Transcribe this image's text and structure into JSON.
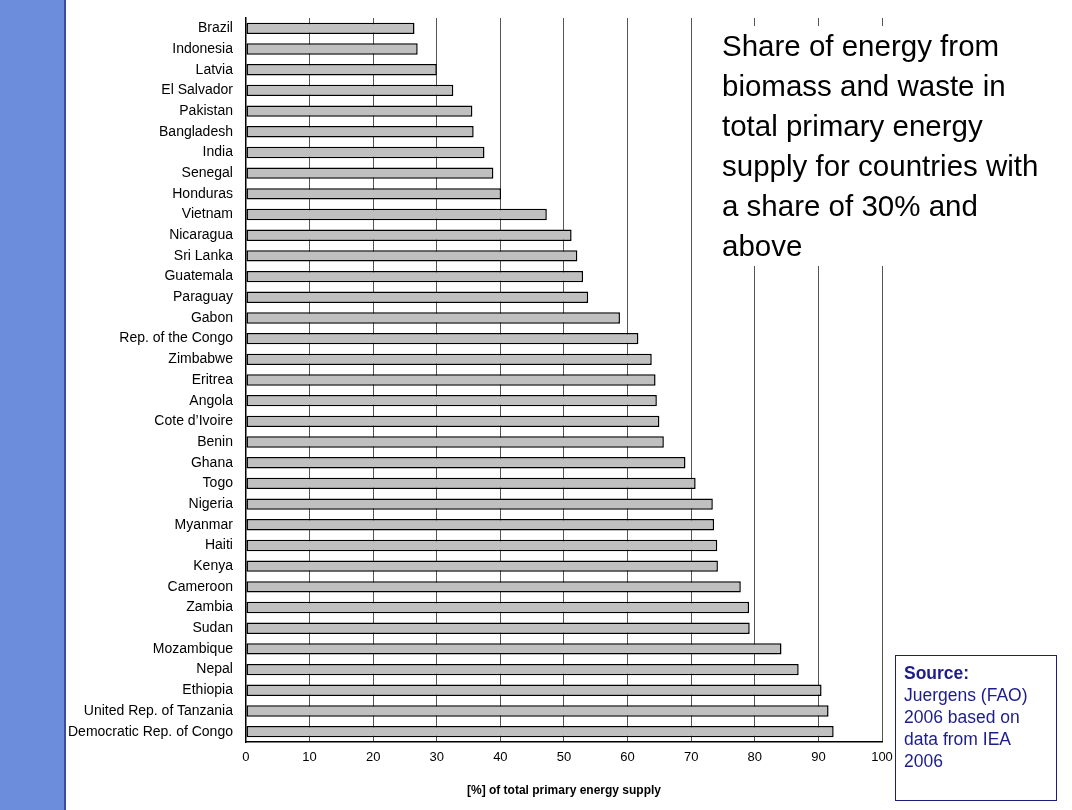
{
  "chart_data": {
    "type": "bar",
    "orientation": "horizontal",
    "title": "Share of energy from biomass and waste in total primary energy supply for countries with a share of 30% and above",
    "xlabel": "[%] of total primary energy supply",
    "categories": [
      "Brazil",
      "Indonesia",
      "Latvia",
      "El Salvador",
      "Pakistan",
      "Bangladesh",
      "India",
      "Senegal",
      "Honduras",
      "Vietnam",
      "Nicaragua",
      "Sri Lanka",
      "Guatemala",
      "Paraguay",
      "Gabon",
      "Rep. of the Congo",
      "Zimbabwe",
      "Eritrea",
      "Angola",
      "Cote d’Ivoire",
      "Benin",
      "Ghana",
      "Togo",
      "Nigeria",
      "Myanmar",
      "Haiti",
      "Kenya",
      "Cameroon",
      "Zambia",
      "Sudan",
      "Mozambique",
      "Nepal",
      "Ethiopia",
      "United Rep. of Tanzania",
      "Democratic Rep. of Congo"
    ],
    "values": [
      26.5,
      27.0,
      30.0,
      32.6,
      35.6,
      35.8,
      37.5,
      38.9,
      40.1,
      47.3,
      51.2,
      52.1,
      53.0,
      53.8,
      58.8,
      61.7,
      63.8,
      64.4,
      64.6,
      65.0,
      65.7,
      69.1,
      70.7,
      73.4,
      73.6,
      74.1,
      74.2,
      77.8,
      79.1,
      79.2,
      84.2,
      86.9,
      90.5,
      91.6,
      92.4
    ],
    "color": "#c0c0c0",
    "xlim": [
      0,
      100
    ],
    "xticks": [
      0,
      10,
      20,
      30,
      40,
      50,
      60,
      70,
      80,
      90,
      100
    ],
    "grid": "x",
    "annotations": [
      "Source:",
      "Juergens (FAO) 2006 based on data from IEA 2006"
    ]
  }
}
